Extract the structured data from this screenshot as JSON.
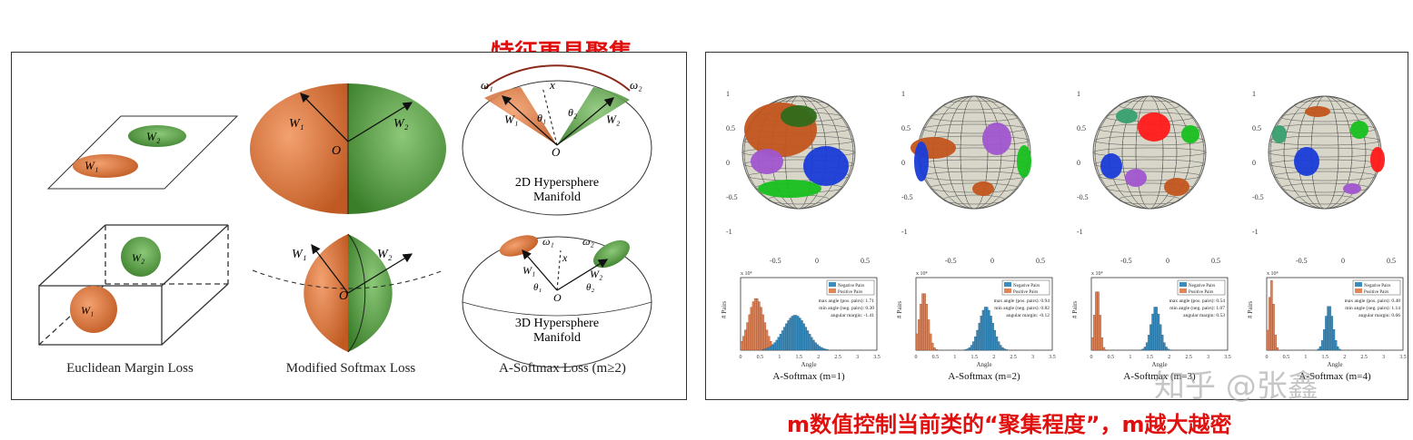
{
  "top_caption": "特征更具聚集",
  "bottom_caption": "m数值控制当前类的“聚集程度”，m越大越密",
  "watermark": "知乎 @张鑫",
  "left_labels": {
    "euclidean": "Euclidean Margin Loss",
    "modified": "Modified Softmax Loss",
    "asoftmax": "A-Softmax Loss (m≥2)",
    "hyper2d_line1": "2D Hypersphere",
    "hyper2d_line2": "Manifold",
    "hyper3d_line1": "3D Hypersphere",
    "hyper3d_line2": "Manifold",
    "w1": "W₁",
    "w2": "W₂",
    "o": "O",
    "x": "x",
    "omega1": "ω₁",
    "omega2": "ω₂",
    "theta1": "θ₁",
    "theta2": "θ₂"
  },
  "right_panels": [
    {
      "title": "A-Softmax (m=1)",
      "stats": [
        "max angle (pos. pairs): 1.71",
        "min angle (neg. pairs): 0.30",
        "angular margin: -1.41"
      ]
    },
    {
      "title": "A-Softmax (m=2)",
      "stats": [
        "max angle (pos. pairs): 0.94",
        "min angle (neg. pairs): 0.82",
        "angular margin: -0.12"
      ]
    },
    {
      "title": "A-Softmax (m=3)",
      "stats": [
        "max angle (pos. pairs): 0.54",
        "min angle (neg. pairs): 1.07",
        "angular margin: 0.53"
      ]
    },
    {
      "title": "A-Softmax (m=4)",
      "stats": [
        "max angle (pos. pairs): 0.48",
        "min angle (neg. pairs): 1.14",
        "angular margin: 0.66"
      ]
    }
  ],
  "hist_common": {
    "legend_neg": "Negative Pairs",
    "legend_pos": "Positive Pairs",
    "xlabel": "Angle",
    "ylabel": "# Pairs",
    "scale": "x 10⁴",
    "xticks": [
      "0",
      "0.5",
      "1",
      "1.5",
      "2",
      "2.5",
      "3",
      "3.5"
    ]
  },
  "colors": {
    "orange": "#d86a33",
    "green": "#3e8f2e",
    "caption_red": "#e0100f",
    "neg_blue": "#3a8dbf",
    "pos_orange": "#e0865a"
  }
}
